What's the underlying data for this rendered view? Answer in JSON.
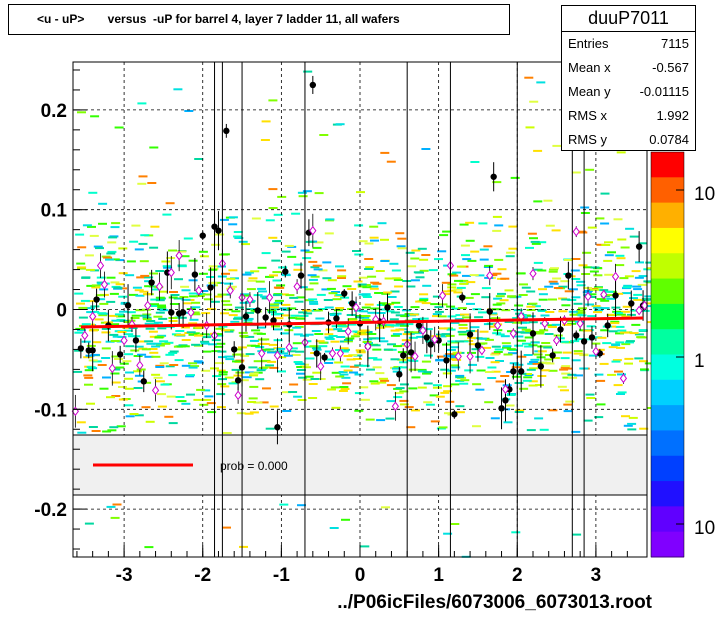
{
  "chart_data": {
    "type": "scatter",
    "title": "<u - uP>       versus  -uP for barrel 4, layer 7 ladder 11, all wafers",
    "xlabel": "../P06icFiles/6073006_6073013.root",
    "ylabel": "",
    "xlim": [
      -3.65,
      3.65
    ],
    "ylim": [
      -0.248,
      0.248
    ],
    "x_ticks": [
      -3,
      -2,
      -1,
      0,
      1,
      2,
      3
    ],
    "y_ticks": [
      -0.2,
      -0.1,
      0,
      0.1,
      0.2
    ],
    "x_tick_labels": [
      "-3",
      "-2",
      "-1",
      "0",
      "1",
      "2",
      "3"
    ],
    "y_tick_labels": [
      "-0.2",
      "-0.1",
      "0",
      "0.1",
      "0.2"
    ],
    "grid": true,
    "stats": {
      "name": "duuP7011",
      "rows": [
        {
          "key": "Entries",
          "value": "7115"
        },
        {
          "key": "Mean x",
          "value": "-0.567"
        },
        {
          "key": "Mean y",
          "value": "-0.01115"
        },
        {
          "key": "RMS x",
          "value": "1.992"
        },
        {
          "key": "RMS y",
          "value": "0.0784"
        }
      ]
    },
    "legend": {
      "position": "lower band",
      "entries": [
        {
          "label": "prob = 0.000",
          "color": "#ff0000"
        }
      ],
      "y_range": [
        -0.126,
        -0.186
      ]
    },
    "palette_labels": [
      "10",
      "1",
      "10"
    ],
    "fit_line": {
      "x": [
        -3.55,
        3.6
      ],
      "y": [
        -0.0175,
        -0.0085
      ],
      "color": "#ff0000"
    },
    "profile_black": [
      [
        -3.55,
        -0.039
      ],
      [
        -3.45,
        -0.041
      ],
      [
        -3.4,
        -0.041
      ],
      [
        -3.35,
        0.01
      ],
      [
        -3.2,
        -0.016
      ],
      [
        -3.05,
        -0.045
      ],
      [
        -2.95,
        0.004
      ],
      [
        -2.85,
        -0.031
      ],
      [
        -2.75,
        -0.072
      ],
      [
        -2.65,
        0.027
      ],
      [
        -2.45,
        0.037
      ],
      [
        -2.4,
        -0.003
      ],
      [
        -2.3,
        -0.004
      ],
      [
        -2.25,
        -0.003
      ],
      [
        -2.1,
        0.035
      ],
      [
        -2.0,
        0.074
      ],
      [
        -1.9,
        0.022
      ],
      [
        -1.85,
        0.083
      ],
      [
        -1.8,
        0.079
      ],
      [
        -1.7,
        0.179
      ],
      [
        -1.6,
        -0.04
      ],
      [
        -1.55,
        -0.071
      ],
      [
        -1.5,
        -0.058
      ],
      [
        -1.45,
        -0.007
      ],
      [
        -1.3,
        -0.001
      ],
      [
        -1.2,
        -0.008
      ],
      [
        -1.1,
        -0.011
      ],
      [
        -1.05,
        -0.118
      ],
      [
        -0.95,
        0.038
      ],
      [
        -0.9,
        -0.015
      ],
      [
        -0.75,
        0.034
      ],
      [
        -0.65,
        0.077
      ],
      [
        -0.6,
        0.225
      ],
      [
        -0.55,
        -0.044
      ],
      [
        -0.45,
        -0.048
      ],
      [
        -0.4,
        -0.013
      ],
      [
        -0.3,
        -0.009
      ],
      [
        -0.2,
        0.016
      ],
      [
        -0.1,
        0.006
      ],
      [
        0.0,
        -0.014
      ],
      [
        0.1,
        -0.037
      ],
      [
        0.25,
        -0.012
      ],
      [
        0.35,
        0.002
      ],
      [
        0.5,
        -0.065
      ],
      [
        0.55,
        -0.046
      ],
      [
        0.65,
        -0.043
      ],
      [
        0.75,
        -0.016
      ],
      [
        0.85,
        -0.028
      ],
      [
        0.9,
        -0.035
      ],
      [
        1.0,
        -0.031
      ],
      [
        1.1,
        -0.051
      ],
      [
        1.2,
        -0.105
      ],
      [
        1.3,
        0.012
      ],
      [
        1.4,
        -0.025
      ],
      [
        1.5,
        -0.036
      ],
      [
        1.65,
        -0.002
      ],
      [
        1.7,
        0.133
      ],
      [
        1.8,
        -0.099
      ],
      [
        1.85,
        -0.091
      ],
      [
        1.9,
        -0.08
      ],
      [
        1.95,
        -0.062
      ],
      [
        2.05,
        -0.062
      ],
      [
        2.2,
        -0.024
      ],
      [
        2.3,
        -0.057
      ],
      [
        2.45,
        -0.046
      ],
      [
        2.55,
        -0.02
      ],
      [
        2.65,
        0.034
      ],
      [
        2.75,
        -0.026
      ],
      [
        2.85,
        -0.032
      ],
      [
        2.95,
        -0.028
      ],
      [
        3.05,
        -0.044
      ],
      [
        3.15,
        -0.016
      ],
      [
        3.25,
        0.014
      ],
      [
        3.45,
        0.006
      ],
      [
        3.55,
        0.063
      ],
      [
        3.6,
        0.004
      ]
    ],
    "profile_magenta": [
      [
        -3.62,
        -0.102
      ],
      [
        -3.5,
        -0.026
      ],
      [
        -3.4,
        -0.007
      ],
      [
        -3.3,
        0.044
      ],
      [
        -3.25,
        0.025
      ],
      [
        -3.15,
        -0.059
      ],
      [
        -3.0,
        -0.031
      ],
      [
        -2.9,
        -0.015
      ],
      [
        -2.8,
        -0.056
      ],
      [
        -2.7,
        0.004
      ],
      [
        -2.6,
        -0.081
      ],
      [
        -2.55,
        0.023
      ],
      [
        -2.4,
        0.037
      ],
      [
        -2.3,
        0.054
      ],
      [
        -2.15,
        -0.003
      ],
      [
        -2.05,
        0.019
      ],
      [
        -1.95,
        -0.016
      ],
      [
        -1.85,
        -0.026
      ],
      [
        -1.75,
        0.046
      ],
      [
        -1.65,
        0.019
      ],
      [
        -1.55,
        -0.086
      ],
      [
        -1.5,
        0.012
      ],
      [
        -1.4,
        0.01
      ],
      [
        -1.25,
        -0.044
      ],
      [
        -1.15,
        0.012
      ],
      [
        -1.05,
        -0.046
      ],
      [
        -0.9,
        -0.038
      ],
      [
        -0.8,
        0.023
      ],
      [
        -0.7,
        -0.033
      ],
      [
        -0.6,
        0.079
      ],
      [
        -0.5,
        -0.057
      ],
      [
        -0.35,
        -0.044
      ],
      [
        -0.25,
        -0.044
      ],
      [
        -0.15,
        -0.022
      ],
      [
        -0.05,
        0.002
      ],
      [
        0.1,
        -0.037
      ],
      [
        0.2,
        -0.01
      ],
      [
        0.3,
        -0.012
      ],
      [
        0.45,
        -0.097
      ],
      [
        0.6,
        -0.035
      ],
      [
        0.7,
        -0.047
      ],
      [
        0.8,
        -0.021
      ],
      [
        0.95,
        -0.03
      ],
      [
        1.05,
        0.014
      ],
      [
        1.15,
        0.044
      ],
      [
        1.25,
        -0.047
      ],
      [
        1.4,
        -0.047
      ],
      [
        1.55,
        -0.041
      ],
      [
        1.65,
        0.034
      ],
      [
        1.75,
        -0.016
      ],
      [
        1.85,
        -0.08
      ],
      [
        1.95,
        -0.024
      ],
      [
        2.05,
        -0.007
      ],
      [
        2.2,
        0.036
      ],
      [
        2.35,
        -0.014
      ],
      [
        2.5,
        -0.031
      ],
      [
        2.6,
        -0.011
      ],
      [
        2.75,
        0.078
      ],
      [
        2.8,
        -0.014
      ],
      [
        2.9,
        0.013
      ],
      [
        3.0,
        -0.042
      ],
      [
        3.1,
        0.015
      ],
      [
        3.25,
        0.033
      ],
      [
        3.35,
        -0.069
      ],
      [
        3.55,
        -0.001
      ],
      [
        3.62,
        0.004
      ]
    ],
    "colors": {
      "fit": "#ff0000",
      "profile_black": "#000000",
      "profile_magenta": "#cc00cc",
      "grid": "#000000"
    }
  }
}
